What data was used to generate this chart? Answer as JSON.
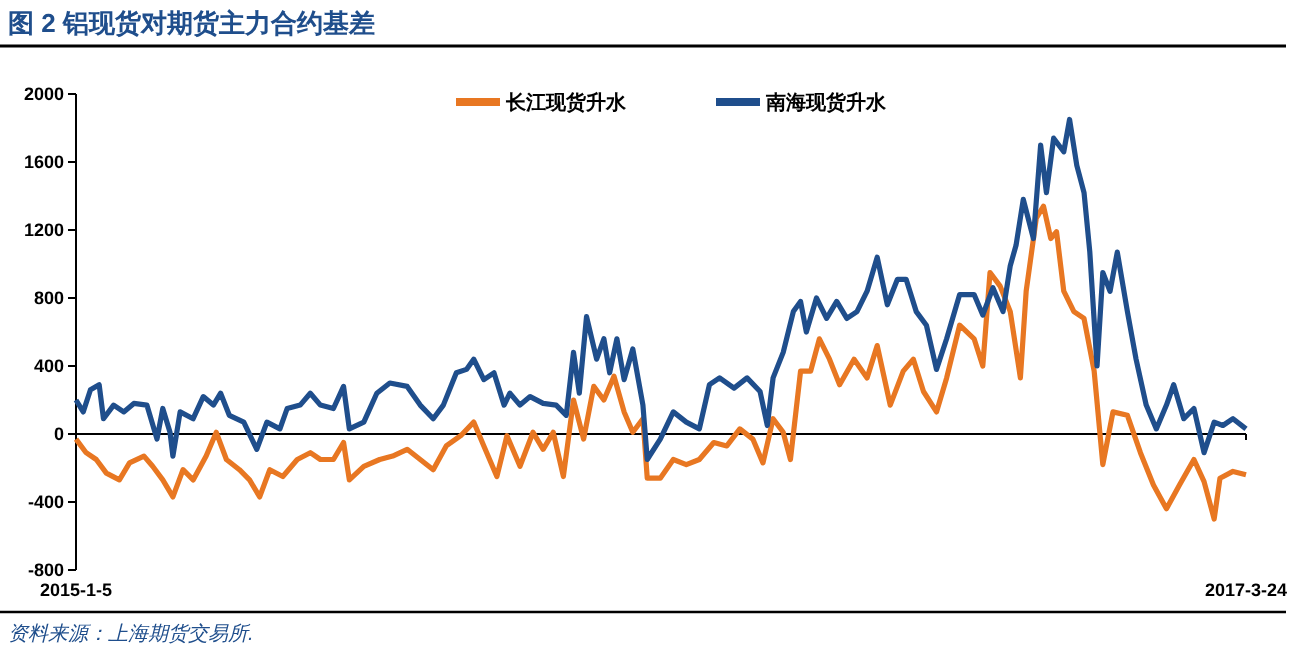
{
  "chart_data": {
    "type": "line",
    "title": "图 2 铝现货对期货主力合约基差",
    "annotations": [
      "资料来源：上海期货交易所."
    ],
    "ylim": [
      -800,
      2000
    ],
    "yticks": [
      -800,
      -400,
      0,
      400,
      800,
      1200,
      1600,
      2000
    ],
    "xlim": [
      "2015-01-05",
      "2017-03-24"
    ],
    "xticks": [
      {
        "value": "2015-01-05",
        "label": "2015-1-5"
      },
      {
        "value": "2017-03-24",
        "label": "2017-3-24"
      }
    ],
    "legend": "top",
    "ref_lines": [
      {
        "axis": "y",
        "value": 0
      }
    ],
    "marker": "none",
    "line_style": "solid",
    "series": [
      {
        "name": "长江现货升水",
        "color": "#e87722",
        "x": [
          "2015-01-05",
          "2015-01-12",
          "2015-01-19",
          "2015-01-26",
          "2015-02-04",
          "2015-02-11",
          "2015-02-21",
          "2015-02-27",
          "2015-03-06",
          "2015-03-13",
          "2015-03-20",
          "2015-03-27",
          "2015-04-05",
          "2015-04-12",
          "2015-04-19",
          "2015-04-28",
          "2015-05-05",
          "2015-05-12",
          "2015-05-19",
          "2015-05-28",
          "2015-06-07",
          "2015-06-16",
          "2015-06-23",
          "2015-07-02",
          "2015-07-09",
          "2015-07-13",
          "2015-07-23",
          "2015-08-03",
          "2015-08-12",
          "2015-08-22",
          "2015-08-31",
          "2015-09-09",
          "2015-09-18",
          "2015-09-28",
          "2015-10-07",
          "2015-10-14",
          "2015-10-23",
          "2015-10-30",
          "2015-11-08",
          "2015-11-17",
          "2015-11-24",
          "2015-12-01",
          "2015-12-08",
          "2015-12-15",
          "2015-12-22",
          "2015-12-29",
          "2016-01-05",
          "2016-01-12",
          "2016-01-19",
          "2016-01-25",
          "2016-02-01",
          "2016-02-04",
          "2016-02-13",
          "2016-02-22",
          "2016-03-02",
          "2016-03-11",
          "2016-03-21",
          "2016-03-30",
          "2016-04-08",
          "2016-04-17",
          "2016-04-24",
          "2016-05-01",
          "2016-05-08",
          "2016-05-13",
          "2016-05-20",
          "2016-05-27",
          "2016-06-02",
          "2016-06-09",
          "2016-06-16",
          "2016-06-26",
          "2016-07-05",
          "2016-07-12",
          "2016-07-21",
          "2016-07-30",
          "2016-08-06",
          "2016-08-13",
          "2016-08-22",
          "2016-08-29",
          "2016-09-07",
          "2016-09-17",
          "2016-09-23",
          "2016-09-28",
          "2016-10-05",
          "2016-10-12",
          "2016-10-19",
          "2016-10-23",
          "2016-10-30",
          "2016-11-04",
          "2016-11-09",
          "2016-11-13",
          "2016-11-18",
          "2016-11-25",
          "2016-12-02",
          "2016-12-09",
          "2016-12-15",
          "2016-12-22",
          "2017-01-01",
          "2017-01-10",
          "2017-01-19",
          "2017-01-28",
          "2017-02-06",
          "2017-02-16",
          "2017-02-23",
          "2017-03-02",
          "2017-03-06",
          "2017-03-15",
          "2017-03-24"
        ],
        "values": [
          -30,
          -110,
          -150,
          -230,
          -270,
          -170,
          -130,
          -190,
          -270,
          -370,
          -210,
          -270,
          -130,
          10,
          -150,
          -210,
          -270,
          -370,
          -210,
          -250,
          -150,
          -110,
          -150,
          -150,
          -50,
          -270,
          -190,
          -150,
          -130,
          -90,
          -150,
          -210,
          -70,
          -10,
          70,
          -70,
          -250,
          -10,
          -190,
          10,
          -90,
          10,
          -250,
          200,
          -30,
          280,
          200,
          340,
          130,
          10,
          90,
          -260,
          -260,
          -150,
          -180,
          -150,
          -50,
          -70,
          30,
          -30,
          -170,
          90,
          10,
          -150,
          370,
          370,
          560,
          440,
          290,
          440,
          330,
          520,
          170,
          370,
          440,
          250,
          130,
          330,
          640,
          560,
          400,
          950,
          870,
          720,
          330,
          840,
          1270,
          1340,
          1150,
          1190,
          840,
          720,
          680,
          370,
          -180,
          130,
          110,
          -110,
          -300,
          -440,
          -300,
          -150,
          -280,
          -500,
          -260,
          -220,
          -240
        ]
      },
      {
        "name": "南海现货升水",
        "color": "#1f4e8c",
        "x": [
          "2015-01-05",
          "2015-01-10",
          "2015-01-15",
          "2015-01-21",
          "2015-01-24",
          "2015-01-31",
          "2015-02-07",
          "2015-02-14",
          "2015-02-23",
          "2015-03-02",
          "2015-03-06",
          "2015-03-11",
          "2015-03-13",
          "2015-03-18",
          "2015-03-27",
          "2015-04-03",
          "2015-04-10",
          "2015-04-15",
          "2015-04-21",
          "2015-05-01",
          "2015-05-10",
          "2015-05-17",
          "2015-05-26",
          "2015-05-31",
          "2015-06-09",
          "2015-06-16",
          "2015-06-23",
          "2015-07-02",
          "2015-07-09",
          "2015-07-13",
          "2015-07-23",
          "2015-08-01",
          "2015-08-10",
          "2015-08-22",
          "2015-08-31",
          "2015-09-09",
          "2015-09-16",
          "2015-09-25",
          "2015-10-02",
          "2015-10-07",
          "2015-10-14",
          "2015-10-21",
          "2015-10-28",
          "2015-11-01",
          "2015-11-08",
          "2015-11-15",
          "2015-11-24",
          "2015-12-03",
          "2015-12-10",
          "2015-12-15",
          "2015-12-19",
          "2015-12-24",
          "2015-12-31",
          "2016-01-05",
          "2016-01-09",
          "2016-01-14",
          "2016-01-19",
          "2016-01-25",
          "2016-02-01",
          "2016-02-04",
          "2016-02-13",
          "2016-02-22",
          "2016-03-02",
          "2016-03-11",
          "2016-03-18",
          "2016-03-25",
          "2016-04-04",
          "2016-04-13",
          "2016-04-22",
          "2016-04-27",
          "2016-05-01",
          "2016-05-08",
          "2016-05-15",
          "2016-05-20",
          "2016-05-24",
          "2016-05-31",
          "2016-06-07",
          "2016-06-14",
          "2016-06-21",
          "2016-06-28",
          "2016-07-05",
          "2016-07-12",
          "2016-07-19",
          "2016-07-26",
          "2016-08-01",
          "2016-08-08",
          "2016-08-15",
          "2016-08-22",
          "2016-08-29",
          "2016-09-07",
          "2016-09-17",
          "2016-09-23",
          "2016-09-30",
          "2016-10-07",
          "2016-10-12",
          "2016-10-16",
          "2016-10-21",
          "2016-10-28",
          "2016-11-02",
          "2016-11-06",
          "2016-11-11",
          "2016-11-18",
          "2016-11-22",
          "2016-11-27",
          "2016-12-02",
          "2016-12-06",
          "2016-12-11",
          "2016-12-15",
          "2016-12-20",
          "2016-12-25",
          "2017-01-01",
          "2017-01-07",
          "2017-01-14",
          "2017-01-21",
          "2017-01-28",
          "2017-02-02",
          "2017-02-09",
          "2017-02-16",
          "2017-02-23",
          "2017-03-02",
          "2017-03-08",
          "2017-03-15",
          "2017-03-24"
        ],
        "values": [
          200,
          130,
          260,
          290,
          90,
          170,
          130,
          180,
          170,
          -30,
          150,
          10,
          -130,
          130,
          90,
          220,
          170,
          240,
          110,
          70,
          -90,
          70,
          30,
          150,
          170,
          240,
          170,
          150,
          280,
          30,
          70,
          240,
          300,
          280,
          170,
          90,
          170,
          360,
          380,
          440,
          320,
          360,
          170,
          240,
          170,
          220,
          180,
          170,
          110,
          480,
          240,
          690,
          440,
          560,
          360,
          560,
          320,
          500,
          170,
          -150,
          -30,
          130,
          70,
          30,
          290,
          330,
          270,
          330,
          250,
          50,
          330,
          480,
          720,
          780,
          600,
          800,
          680,
          780,
          680,
          720,
          840,
          1040,
          760,
          910,
          910,
          720,
          640,
          380,
          560,
          820,
          820,
          700,
          860,
          720,
          990,
          1110,
          1380,
          1150,
          1700,
          1420,
          1740,
          1660,
          1850,
          1580,
          1420,
          1070,
          400,
          950,
          840,
          1070,
          720,
          440,
          170,
          30,
          170,
          290,
          90,
          150,
          -110,
          70,
          50,
          90,
          30
        ]
      }
    ]
  }
}
